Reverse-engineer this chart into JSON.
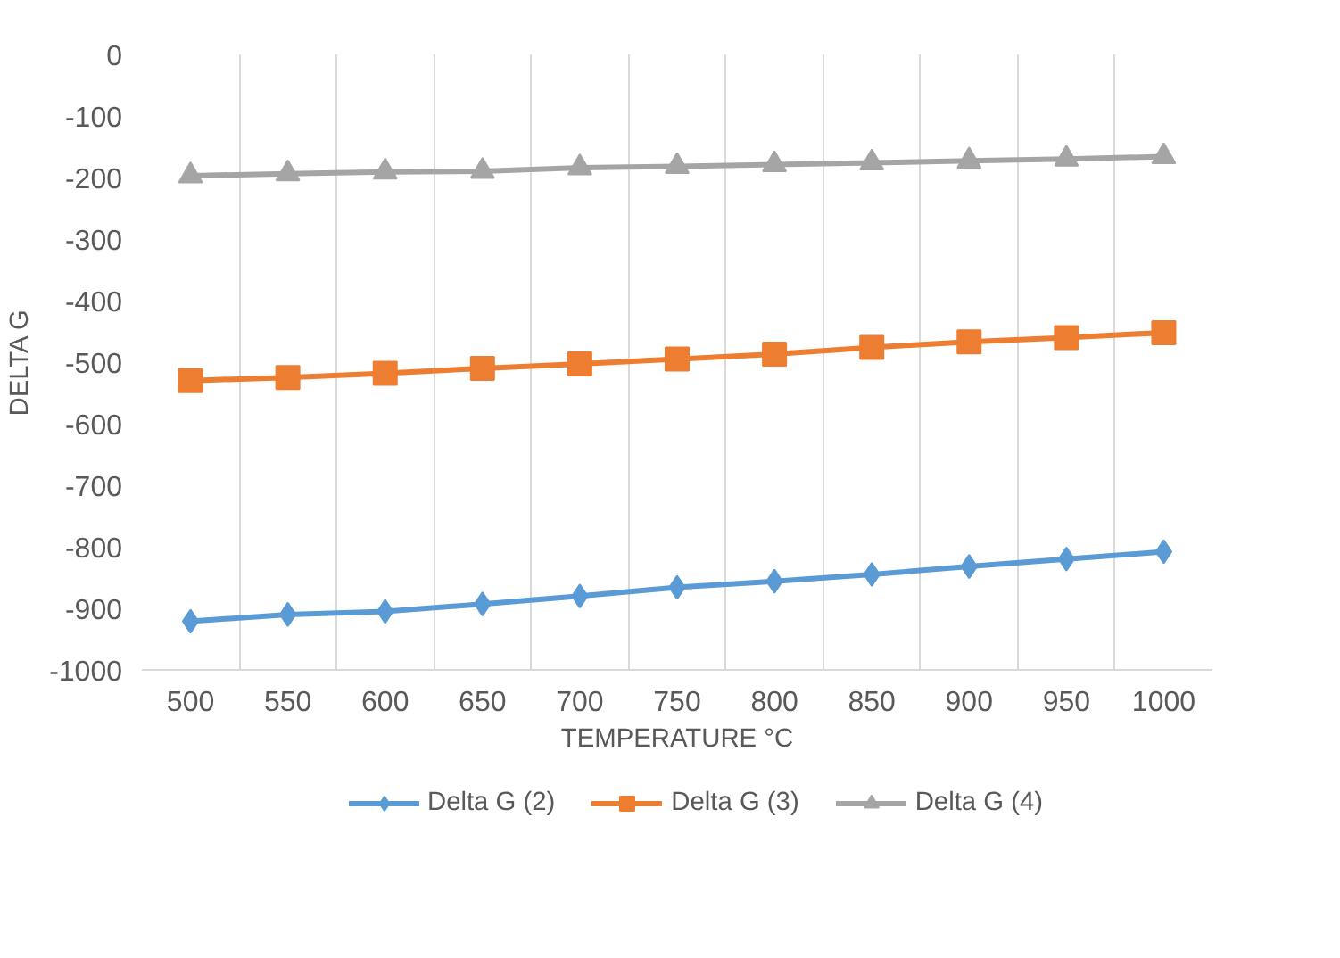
{
  "chart_data": {
    "type": "line",
    "xlabel": "TEMPERATURE °C",
    "ylabel": "DELTA G",
    "categories": [
      "500",
      "550",
      "600",
      "650",
      "700",
      "750",
      "800",
      "850",
      "900",
      "950",
      "1000"
    ],
    "series": [
      {
        "name": "Delta G (2)",
        "color": "#5b9bd5",
        "marker": "diamond",
        "values": [
          -921,
          -910,
          -905,
          -893,
          -880,
          -866,
          -856,
          -845,
          -832,
          -820,
          -808
        ]
      },
      {
        "name": "Delta G (3)",
        "color": "#ed7d31",
        "marker": "square",
        "values": [
          -530,
          -525,
          -518,
          -510,
          -503,
          -495,
          -487,
          -476,
          -467,
          -460,
          -452
        ]
      },
      {
        "name": "Delta G (4)",
        "color": "#a5a5a5",
        "marker": "triangle",
        "values": [
          -197,
          -194,
          -191,
          -190,
          -184,
          -182,
          -179,
          -176,
          -173,
          -170,
          -166
        ]
      }
    ],
    "ylim": [
      -1000,
      0
    ],
    "yticks": [
      -1000,
      -900,
      -800,
      -700,
      -600,
      -500,
      -400,
      -300,
      -200,
      -100,
      0
    ],
    "grid": "x",
    "legend": "bottom",
    "line_style": "solid"
  }
}
